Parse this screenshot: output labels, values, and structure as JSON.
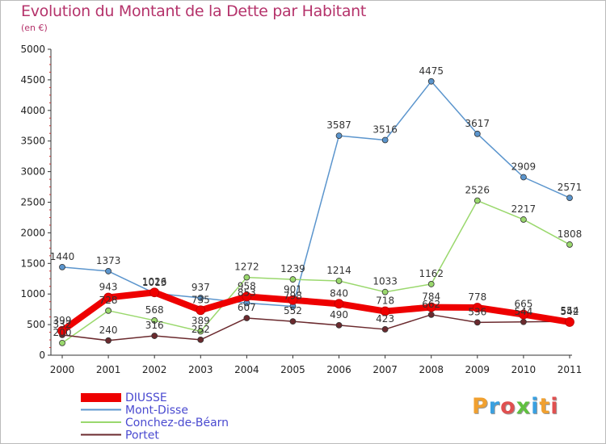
{
  "title": "Evolution du Montant de la Dette par Habitant",
  "subtitle": "(en €)",
  "logo_text": "Proxiti",
  "chart_data": {
    "type": "line",
    "x": [
      "2000",
      "2001",
      "2002",
      "2003",
      "2004",
      "2005",
      "2006",
      "2007",
      "2008",
      "2009",
      "2010",
      "2011"
    ],
    "ylim": [
      0,
      5000
    ],
    "yticks": [
      0,
      500,
      1000,
      1500,
      2000,
      2500,
      3000,
      3500,
      4000,
      4500,
      5000
    ],
    "grid": false,
    "legend_position": "bottom-left",
    "series": [
      {
        "name": "DIUSSE",
        "color": "#ee0000",
        "values": [
          399,
          943,
          1026,
          735,
          958,
          901,
          840,
          718,
          784,
          778,
          665,
          542
        ],
        "labels": [
          "399",
          "943",
          "1026",
          "735",
          "958",
          "901",
          "840",
          "718",
          "784",
          "778",
          "665",
          "542"
        ]
      },
      {
        "name": "Mont-Disse",
        "color": "#5b95cd",
        "values": [
          1440,
          1373,
          1013,
          937,
          853,
          798,
          3587,
          3516,
          4475,
          3617,
          2909,
          2571
        ],
        "labels": [
          "1440",
          "1373",
          "1013",
          "937",
          "853",
          "798",
          "3587",
          "3516",
          "4475",
          "3617",
          "2909",
          "2571"
        ]
      },
      {
        "name": "Conchez-de-Béarn",
        "color": "#9ad86d",
        "values": [
          200,
          728,
          568,
          389,
          1272,
          1239,
          1214,
          1033,
          1162,
          2526,
          2217,
          1808
        ],
        "labels": [
          "200",
          "728",
          "568",
          "389",
          "1272",
          "1239",
          "1214",
          "1033",
          "1162",
          "2526",
          "2217",
          "1808"
        ]
      },
      {
        "name": "Portet",
        "color": "#6b2a2e",
        "values": [
          332,
          240,
          316,
          252,
          607,
          552,
          490,
          423,
          662,
          536,
          544,
          554
        ],
        "labels": [
          "332",
          "240",
          "316",
          "252",
          "607",
          "552",
          "490",
          "423",
          "662",
          "536",
          "544",
          "554"
        ]
      }
    ]
  }
}
